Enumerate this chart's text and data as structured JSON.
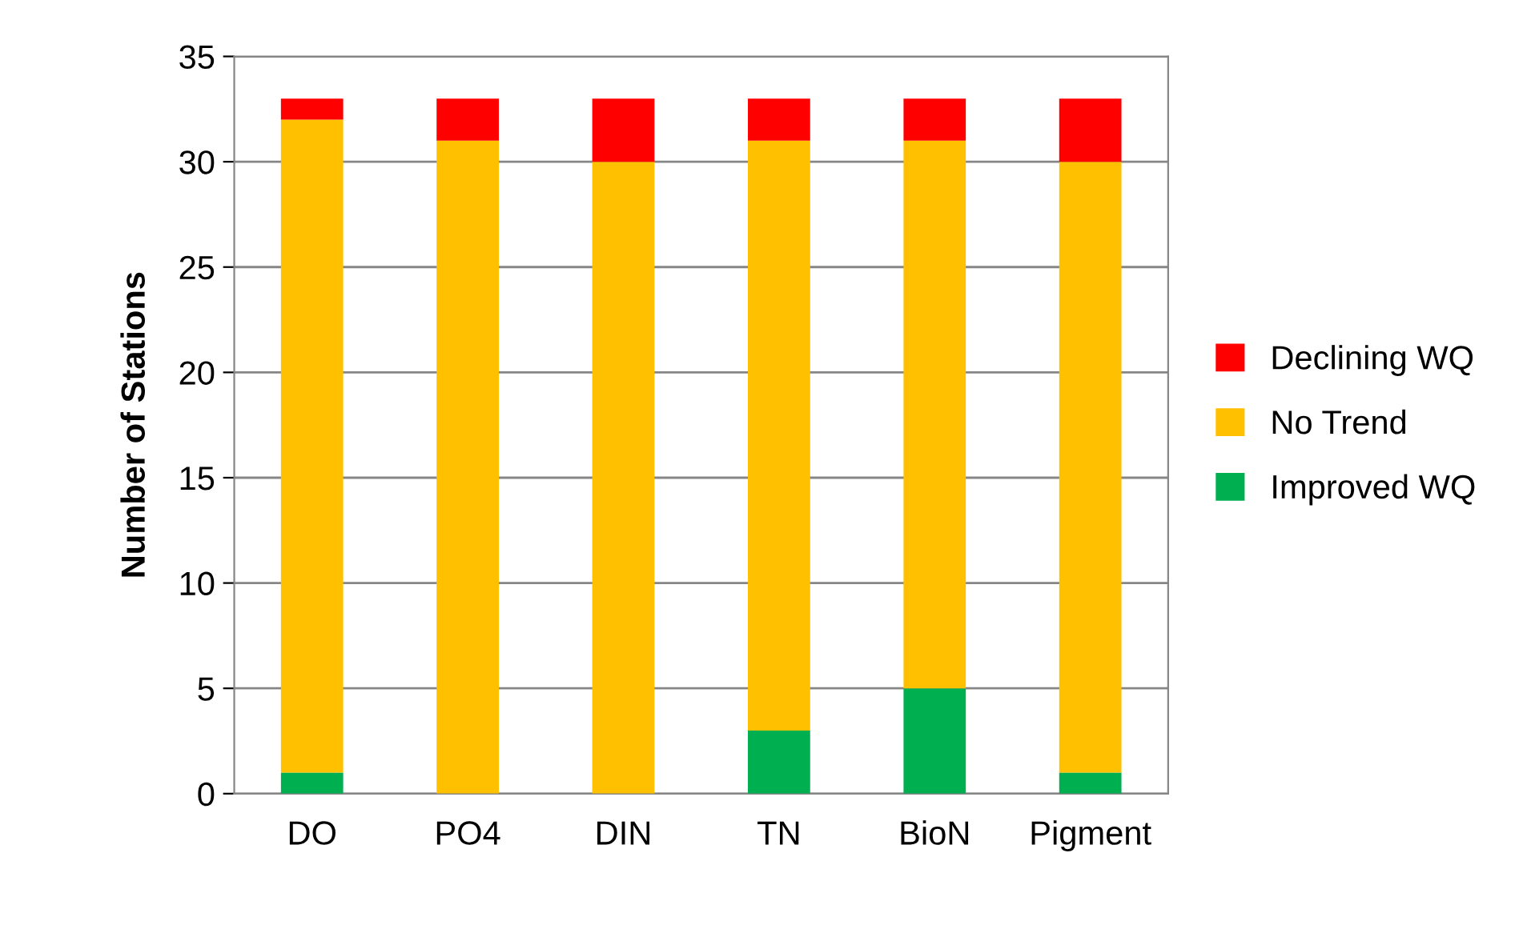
{
  "chart_data": {
    "type": "bar",
    "stacked": true,
    "ylabel": "Number of Stations",
    "categories": [
      "DO",
      "PO4",
      "DIN",
      "TN",
      "BioN",
      "Pigment"
    ],
    "series": [
      {
        "name": "Improved WQ",
        "color": "#00b050",
        "values": [
          1,
          0,
          0,
          3,
          5,
          1
        ]
      },
      {
        "name": "No Trend",
        "color": "#ffc000",
        "values": [
          31,
          31,
          30,
          28,
          26,
          29
        ]
      },
      {
        "name": "Declining WQ",
        "color": "#ff0000",
        "values": [
          1,
          2,
          3,
          2,
          2,
          3
        ]
      }
    ],
    "ylim": [
      0,
      35
    ],
    "yticks": [
      0,
      5,
      10,
      15,
      20,
      25,
      30,
      35
    ],
    "grid": "y",
    "legend": "right"
  }
}
